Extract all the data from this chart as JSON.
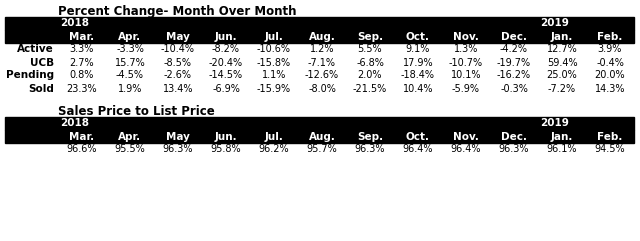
{
  "title1": "Percent Change- Month Over Month",
  "title2": "Sales Price to List Price",
  "months": [
    "Mar.",
    "Apr.",
    "May",
    "Jun.",
    "Jul.",
    "Aug.",
    "Sep.",
    "Oct.",
    "Nov.",
    "Dec.",
    "Jan.",
    "Feb."
  ],
  "rows1_labels": [
    "Active",
    "UCB",
    "Pending",
    "Sold"
  ],
  "rows1": [
    [
      "3.3%",
      "-3.3%",
      "-10.4%",
      "-8.2%",
      "-10.6%",
      "1.2%",
      "5.5%",
      "9.1%",
      "1.3%",
      "-4.2%",
      "12.7%",
      "3.9%"
    ],
    [
      "2.7%",
      "15.7%",
      "-8.5%",
      "-20.4%",
      "-15.8%",
      "-7.1%",
      "-6.8%",
      "17.9%",
      "-10.7%",
      "-19.7%",
      "59.4%",
      "-0.4%"
    ],
    [
      "0.8%",
      "-4.5%",
      "-2.6%",
      "-14.5%",
      "1.1%",
      "-12.6%",
      "2.0%",
      "-18.4%",
      "10.1%",
      "-16.2%",
      "25.0%",
      "20.0%"
    ],
    [
      "23.3%",
      "1.9%",
      "13.4%",
      "-6.9%",
      "-15.9%",
      "-8.0%",
      "-21.5%",
      "10.4%",
      "-5.9%",
      "-0.3%",
      "-7.2%",
      "14.3%"
    ]
  ],
  "rows2": [
    "96.6%",
    "95.5%",
    "96.3%",
    "95.8%",
    "96.2%",
    "95.7%",
    "96.3%",
    "96.4%",
    "96.4%",
    "96.3%",
    "96.1%",
    "94.5%"
  ],
  "header_bg": "#000000",
  "header_fg": "#ffffff",
  "body_fg": "#000000",
  "title_fontsize": 8.5,
  "header_fontsize": 7.5,
  "cell_fontsize": 7.0,
  "label_fontsize": 7.5
}
